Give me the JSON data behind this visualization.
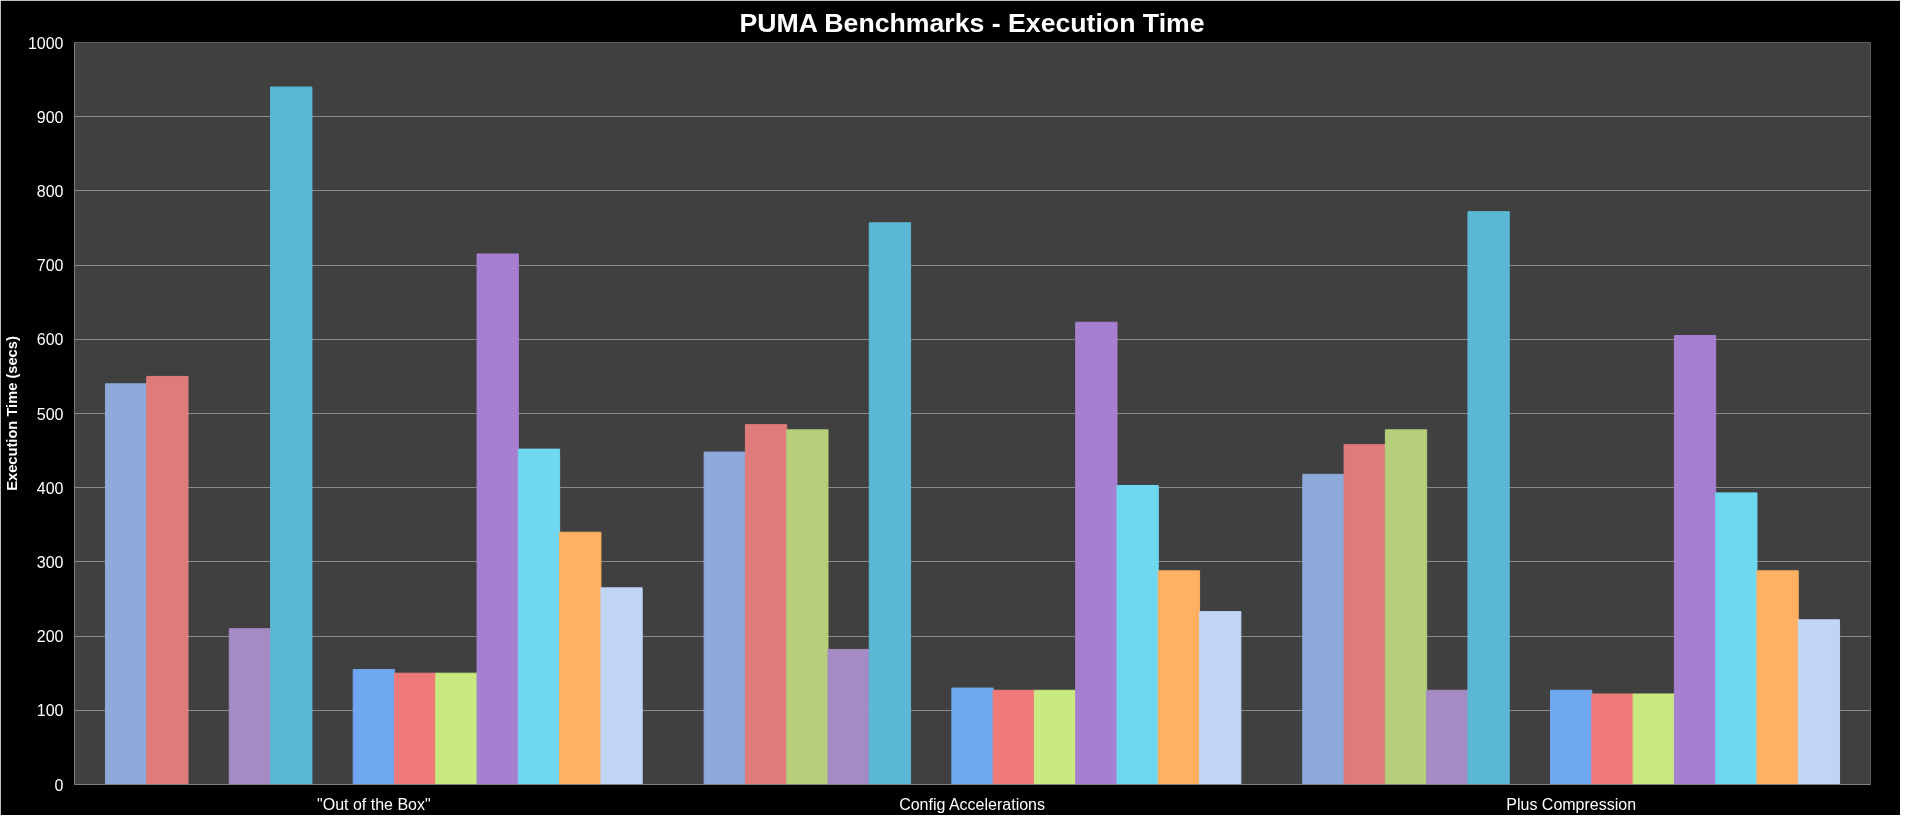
{
  "chart_data": {
    "type": "bar",
    "title": "PUMA Benchmarks - Execution Time",
    "ylabel": "Execution Time (secs)",
    "categories": [
      "\"Out of the Box\"",
      "Config Accelerations",
      "Plus Compression"
    ],
    "series": [
      {
        "color": "#8eaadb",
        "values": [
          540,
          448,
          418
        ]
      },
      {
        "color": "#e07b7b",
        "values": [
          550,
          485,
          458
        ]
      },
      {
        "color": "#b5cf7a",
        "values": [
          null,
          478,
          478
        ]
      },
      {
        "color": "#a58bc4",
        "values": [
          210,
          182,
          127
        ]
      },
      {
        "color": "#5bb8d4",
        "values": [
          940,
          757,
          772
        ]
      },
      {
        "values": [
          null,
          null,
          null
        ]
      },
      {
        "color": "#6fa8f0",
        "values": [
          155,
          130,
          127
        ]
      },
      {
        "color": "#f07a7a",
        "values": [
          150,
          127,
          122
        ]
      },
      {
        "color": "#c8ea80",
        "values": [
          150,
          127,
          122
        ]
      },
      {
        "color": "#a77fd0",
        "values": [
          715,
          623,
          605
        ]
      },
      {
        "color": "#6fd8f0",
        "values": [
          452,
          403,
          393
        ]
      },
      {
        "color": "#ffb060",
        "values": [
          340,
          288,
          288
        ]
      },
      {
        "color": "#c0d4f4",
        "values": [
          265,
          233,
          222
        ]
      }
    ],
    "ylim": [
      0,
      1000
    ],
    "yticks": [
      0,
      100,
      200,
      300,
      400,
      500,
      600,
      700,
      800,
      900,
      1000
    ],
    "grid": "y"
  }
}
